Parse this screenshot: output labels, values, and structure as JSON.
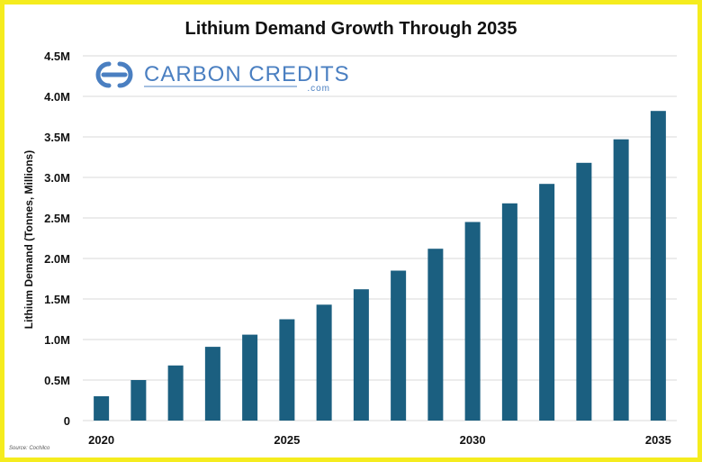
{
  "brand": {
    "name": "CARBON CREDITS",
    "suffix": ".com",
    "color": "#4a7fc1"
  },
  "source": "Source: Cochilco",
  "colors": {
    "bar": "#1b5f80",
    "frame": "#f5ec1e",
    "grid": "#d9d9d9"
  },
  "chart_data": {
    "type": "bar",
    "title": "Lithium Demand Growth Through 2035",
    "xlabel": "",
    "ylabel": "Lithium Demand (Tonnes, Millions)",
    "categories": [
      "2020",
      "2021",
      "2022",
      "2023",
      "2024",
      "2025",
      "2026",
      "2027",
      "2028",
      "2029",
      "2030",
      "2031",
      "2032",
      "2033",
      "2034",
      "2035"
    ],
    "x_tick_labels": [
      {
        "category": "2020",
        "label": "2020"
      },
      {
        "category": "2025",
        "label": "2025"
      },
      {
        "category": "2030",
        "label": "2030"
      },
      {
        "category": "2035",
        "label": "2035"
      }
    ],
    "values": [
      0.3,
      0.5,
      0.68,
      0.91,
      1.06,
      1.25,
      1.43,
      1.62,
      1.85,
      2.12,
      2.45,
      2.68,
      2.92,
      3.18,
      3.47,
      3.82
    ],
    "unit": "M",
    "ylim": [
      0,
      4.5
    ],
    "y_ticks": [
      {
        "value": 0,
        "label": "0"
      },
      {
        "value": 0.5,
        "label": "0.5M"
      },
      {
        "value": 1.0,
        "label": "1.0M"
      },
      {
        "value": 1.5,
        "label": "1.5M"
      },
      {
        "value": 2.0,
        "label": "2.0M"
      },
      {
        "value": 2.5,
        "label": "2.5M"
      },
      {
        "value": 3.0,
        "label": "3.0M"
      },
      {
        "value": 3.5,
        "label": "3.5M"
      },
      {
        "value": 4.0,
        "label": "4.0M"
      },
      {
        "value": 4.5,
        "label": "4.5M"
      }
    ],
    "grid": true,
    "legend": "none"
  }
}
